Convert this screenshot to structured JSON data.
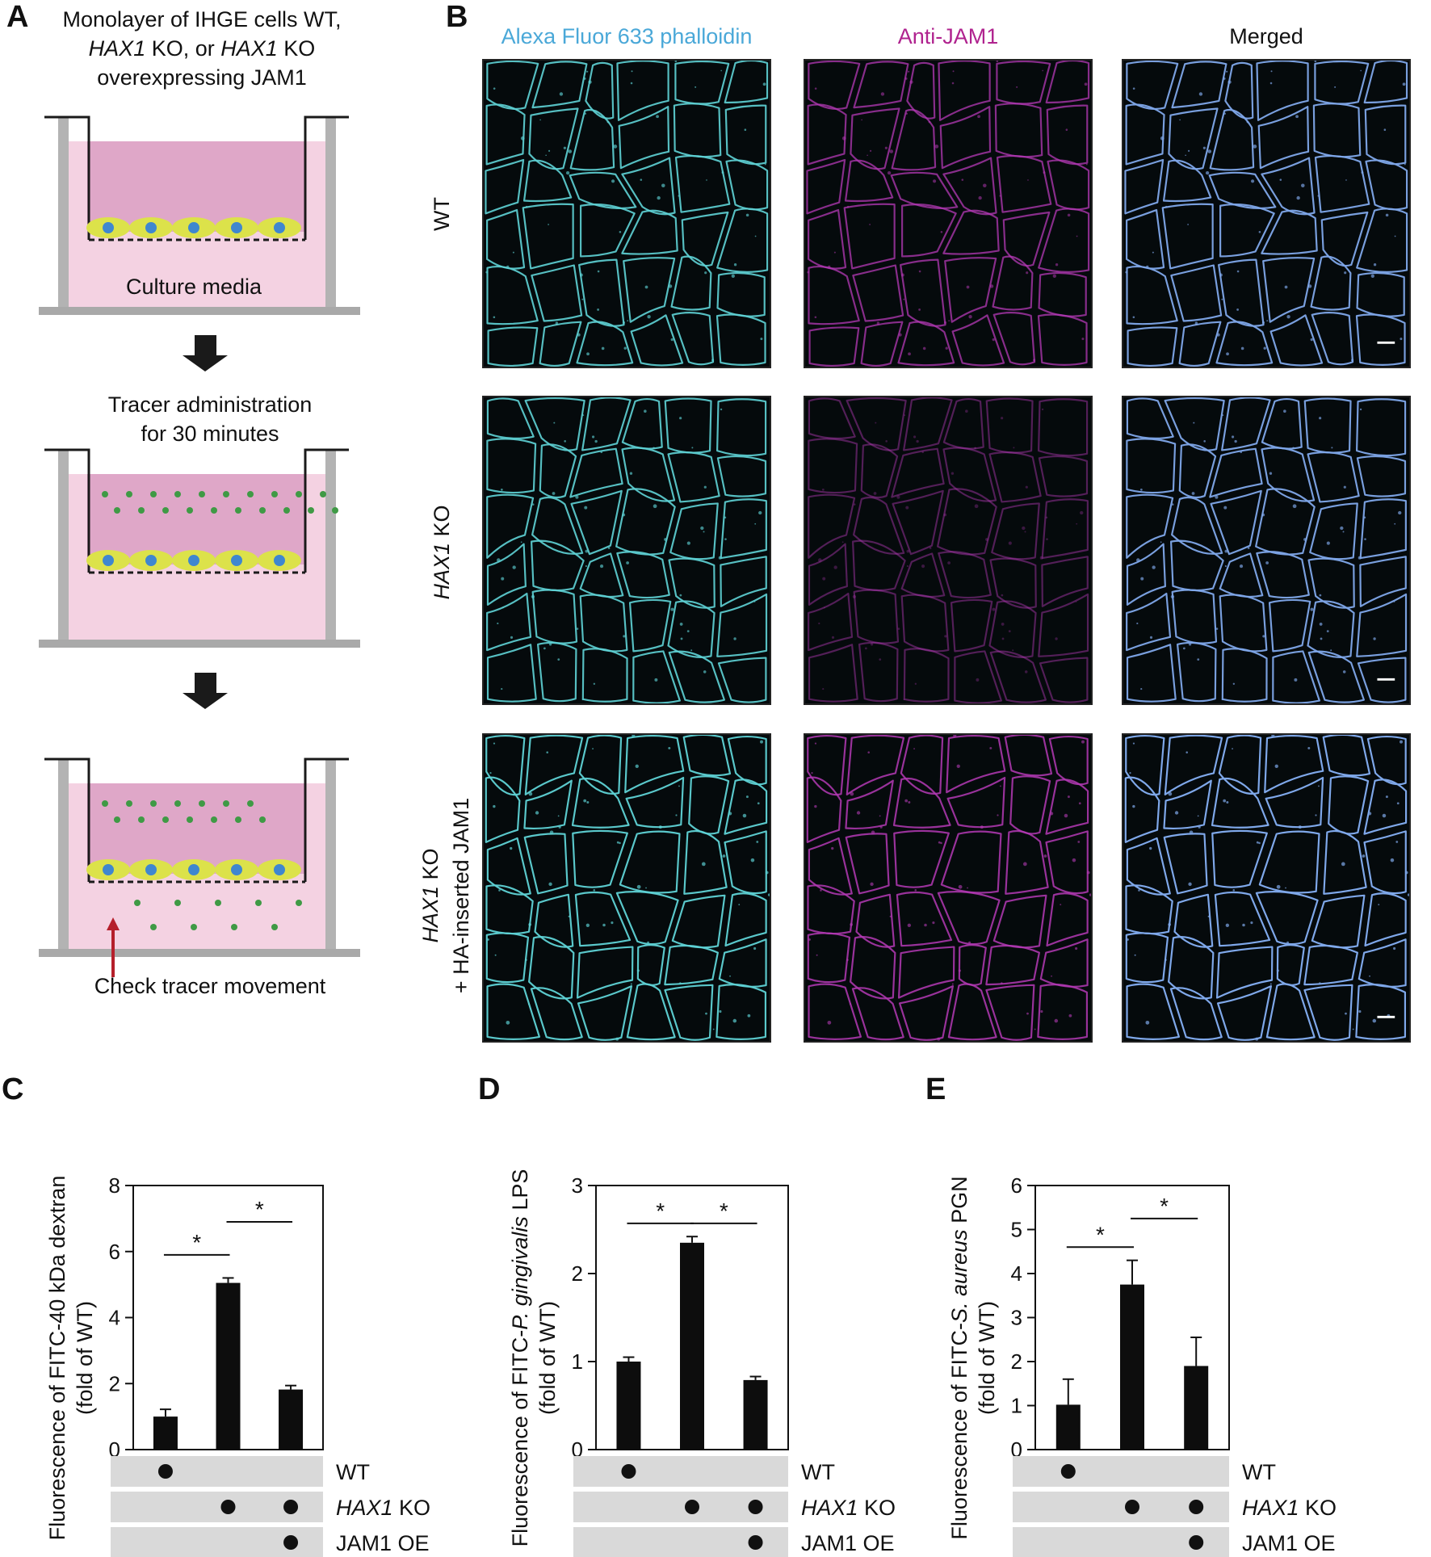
{
  "panel_a": {
    "letter": "A",
    "intro": [
      "Monolayer of IHGE cells WT,",
      "HAX1",
      " KO, or ",
      "HAX1",
      " KO",
      "overexpressing JAM1"
    ],
    "culture_label": "Culture media",
    "step2": [
      "Tracer administration",
      "for 30 minutes"
    ],
    "check_label": "Check tracer movement",
    "colors": {
      "well_top": "#dfa7c8",
      "well_bottom": "#f4d2e2",
      "cells": "#dce24a",
      "nuclei": "#3f87cf",
      "tracer": "#3f9a45",
      "pointer": "#b51f2b"
    }
  },
  "panel_b": {
    "letter": "B",
    "columns": [
      {
        "label": "Alexa Fluor 633 phalloidin",
        "color": "#4aa8d8"
      },
      {
        "label": "Anti-JAM1",
        "color": "#b0238f"
      },
      {
        "label": "Merged",
        "color": "#111111"
      }
    ],
    "rows": [
      {
        "lines": [
          {
            "italic": "",
            "plain": "WT"
          }
        ]
      },
      {
        "lines": [
          {
            "italic": "HAX1",
            "plain": " KO"
          }
        ]
      },
      {
        "lines": [
          {
            "italic": "HAX1",
            "plain": " KO"
          },
          {
            "italic": "",
            "plain": "+ HA-inserted JAM1"
          }
        ]
      }
    ],
    "stain_colors": {
      "phalloidin": "#5fd3d6",
      "jam1": "#b43ab5",
      "merged": "#7fa8ea"
    }
  },
  "chart_data": [
    {
      "panel": "C",
      "type": "bar",
      "ylabel_lines": [
        [
          "Fluorescence of FITC-40 kDa dextran"
        ],
        [
          "(fold of WT)"
        ]
      ],
      "yticks": [
        0,
        2,
        4,
        6,
        8
      ],
      "ylim": [
        0,
        8
      ],
      "values": [
        1.0,
        5.05,
        1.82
      ],
      "errors": [
        0.22,
        0.15,
        0.12
      ],
      "significance": [
        {
          "from": 0,
          "to": 1,
          "y": 5.9,
          "label": "*"
        },
        {
          "from": 1,
          "to": 2,
          "y": 6.9,
          "label": "*"
        }
      ],
      "conditions": [
        {
          "label_italic": "",
          "label_plain": "WT",
          "dots": [
            1,
            0,
            0
          ]
        },
        {
          "label_italic": "HAX1",
          "label_plain": " KO",
          "dots": [
            0,
            1,
            1
          ]
        },
        {
          "label_italic": "",
          "label_plain": "JAM1 OE",
          "dots": [
            0,
            0,
            1
          ]
        }
      ]
    },
    {
      "panel": "D",
      "type": "bar",
      "ylabel_lines": [
        [
          "Fluorescence of FITC-",
          "P. gingivalis",
          " LPS"
        ],
        [
          "(fold of WT)"
        ]
      ],
      "yticks": [
        0,
        1,
        2,
        3
      ],
      "ylim": [
        0,
        3
      ],
      "values": [
        1.0,
        2.35,
        0.79
      ],
      "errors": [
        0.05,
        0.07,
        0.04
      ],
      "significance": [
        {
          "from": 0,
          "to": 1,
          "y": 2.57,
          "label": "*"
        },
        {
          "from": 1,
          "to": 2,
          "y": 2.57,
          "label": "*"
        }
      ],
      "conditions": [
        {
          "label_italic": "",
          "label_plain": "WT",
          "dots": [
            1,
            0,
            0
          ]
        },
        {
          "label_italic": "HAX1",
          "label_plain": " KO",
          "dots": [
            0,
            1,
            1
          ]
        },
        {
          "label_italic": "",
          "label_plain": "JAM1 OE",
          "dots": [
            0,
            0,
            1
          ]
        }
      ]
    },
    {
      "panel": "E",
      "type": "bar",
      "ylabel_lines": [
        [
          "Fluorescence of FITC-",
          "S. aureus",
          " PGN"
        ],
        [
          "(fold of WT)"
        ]
      ],
      "yticks": [
        0,
        1,
        2,
        3,
        4,
        5,
        6
      ],
      "ylim": [
        0,
        6
      ],
      "values": [
        1.02,
        3.75,
        1.9
      ],
      "errors": [
        0.58,
        0.55,
        0.65
      ],
      "significance": [
        {
          "from": 0,
          "to": 1,
          "y": 4.6,
          "label": "*"
        },
        {
          "from": 1,
          "to": 2,
          "y": 5.25,
          "label": "*"
        }
      ],
      "conditions": [
        {
          "label_italic": "",
          "label_plain": "WT",
          "dots": [
            1,
            0,
            0
          ]
        },
        {
          "label_italic": "HAX1",
          "label_plain": " KO",
          "dots": [
            0,
            1,
            1
          ]
        },
        {
          "label_italic": "",
          "label_plain": "JAM1 OE",
          "dots": [
            0,
            0,
            1
          ]
        }
      ]
    }
  ]
}
